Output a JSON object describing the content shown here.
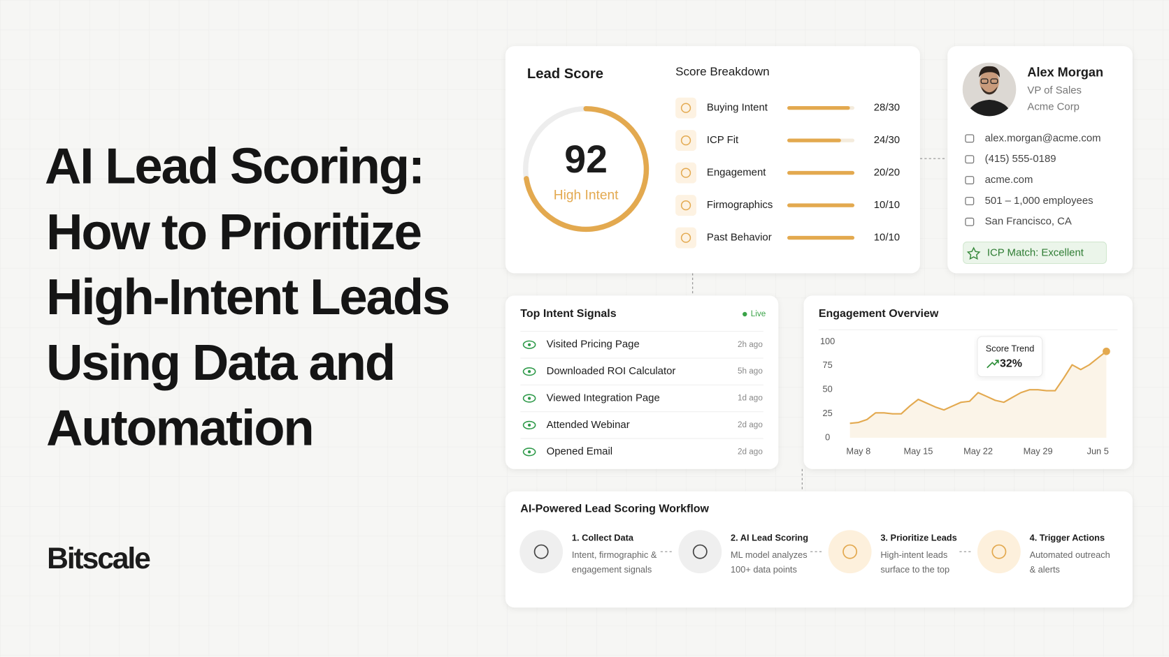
{
  "headline": {
    "lines": [
      "AI Lead Scoring:",
      "How to Prioritize",
      "High-Intent Leads",
      "Using Data and",
      "Automation"
    ]
  },
  "brand": "Bitscale",
  "lead_score": {
    "title": "Lead Score",
    "score": 92,
    "status": "High Intent"
  },
  "breakdown": {
    "title": "Score Breakdown",
    "items": [
      {
        "name": "Buying Intent",
        "value": 28,
        "max": 30,
        "label": "28/30"
      },
      {
        "name": "ICP Fit",
        "value": 24,
        "max": 30,
        "label": "24/30"
      },
      {
        "name": "Engagement",
        "value": 20,
        "max": 20,
        "label": "20/20"
      },
      {
        "name": "Firmographics",
        "value": 10,
        "max": 10,
        "label": "10/10"
      },
      {
        "name": "Past Behavior",
        "value": 10,
        "max": 10,
        "label": "10/10"
      }
    ]
  },
  "profile": {
    "name": "Alex Morgan",
    "role": "VP of Sales",
    "company": "Acme Corp",
    "details": [
      "alex.morgan@acme.com",
      "(415) 555-0189",
      "acme.com",
      "501 – 1,000 employees",
      "San Francisco, CA"
    ],
    "badge": "ICP Match: Excellent"
  },
  "signals": {
    "title": "Top Intent Signals",
    "status": "Live",
    "items": [
      {
        "name": "Visited Pricing Page",
        "time": "2h ago"
      },
      {
        "name": "Downloaded ROI Calculator",
        "time": "5h ago"
      },
      {
        "name": "Viewed Integration Page",
        "time": "1d ago"
      },
      {
        "name": "Attended Webinar",
        "time": "2d ago"
      },
      {
        "name": "Opened Email",
        "time": "2d ago"
      }
    ]
  },
  "chart_data": {
    "type": "line",
    "title": "Engagement Overview",
    "color": "#e3a94f",
    "categories": [
      null,
      "May 8",
      null,
      null,
      null,
      null,
      null,
      null,
      "May 15",
      null,
      null,
      null,
      null,
      null,
      null,
      "May 22",
      null,
      null,
      null,
      null,
      null,
      null,
      "May 29",
      null,
      null,
      null,
      null,
      null,
      null,
      "Jun 5",
      null
    ],
    "values": [
      15,
      16,
      19,
      26,
      26,
      25,
      25,
      33,
      40,
      36,
      32,
      29,
      33,
      37,
      38,
      47,
      43,
      39,
      37,
      42,
      47,
      50,
      50,
      49,
      49,
      62,
      76,
      71,
      76,
      83,
      90
    ],
    "ylim": [
      0,
      100
    ],
    "yticks": [
      0,
      25,
      50,
      75,
      100
    ],
    "annotation": {
      "title": "Score Trend",
      "change": "32%"
    }
  },
  "workflow": {
    "title": "AI-Powered Lead Scoring Workflow",
    "steps": [
      {
        "title": "1. Collect Data",
        "description": [
          "Intent, firmographic &",
          "engagement signals"
        ]
      },
      {
        "title": "2. AI Lead Scoring",
        "description": [
          "ML model analyzes",
          "100+ data points"
        ]
      },
      {
        "title": "3. Prioritize Leads",
        "description": [
          "High-intent leads",
          "surface to the top"
        ]
      },
      {
        "title": "4. Trigger Actions",
        "description": [
          "Automated outreach",
          "& alerts"
        ]
      }
    ]
  }
}
